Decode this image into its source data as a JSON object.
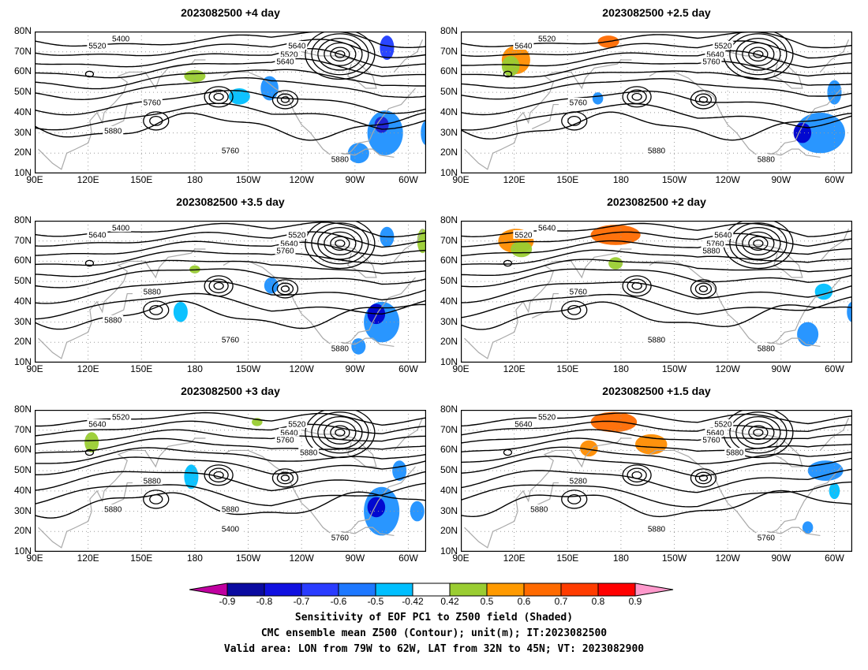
{
  "panels": [
    {
      "title": "2023082500 +4 day",
      "contour_labels": [
        "5400",
        "5520",
        "5640",
        "5520",
        "5640",
        "5760",
        "5760",
        "5880",
        "5880"
      ],
      "blobs": [
        {
          "lon": -72,
          "lat": 72,
          "rx": 4,
          "ry": 6,
          "color": "#1f3cff"
        },
        {
          "lon": -73,
          "lat": 30,
          "rx": 10,
          "ry": 11,
          "color": "#1e90ff"
        },
        {
          "lon": -75,
          "lat": 34,
          "rx": 4,
          "ry": 4,
          "color": "#2020d0"
        },
        {
          "lon": -88,
          "lat": 20,
          "rx": 6,
          "ry": 5,
          "color": "#1e90ff"
        },
        {
          "lon": -155,
          "lat": 48,
          "rx": 6,
          "ry": 4,
          "color": "#00bfff"
        },
        {
          "lon": -138,
          "lat": 52,
          "rx": 5,
          "ry": 6,
          "color": "#1e90ff"
        },
        {
          "lon": 180,
          "lat": 58,
          "rx": 6,
          "ry": 3,
          "color": "#9acd32"
        },
        {
          "lon": -50,
          "lat": 30,
          "rx": 3,
          "ry": 6,
          "color": "#1e90ff"
        }
      ]
    },
    {
      "title": "2023082500 +2.5 day",
      "contour_labels": [
        "5520",
        "5640",
        "5520",
        "5640",
        "5760",
        "5760",
        "5880",
        "5880"
      ],
      "blobs": [
        {
          "lon": 121,
          "lat": 66,
          "rx": 8,
          "ry": 7,
          "color": "#ff8c00"
        },
        {
          "lon": 118,
          "lat": 63,
          "rx": 5,
          "ry": 5,
          "color": "#9acd32"
        },
        {
          "lon": 173,
          "lat": 75,
          "rx": 6,
          "ry": 3,
          "color": "#ff6a00"
        },
        {
          "lon": -68,
          "lat": 30,
          "rx": 14,
          "ry": 10,
          "color": "#1e90ff"
        },
        {
          "lon": -78,
          "lat": 30,
          "rx": 5,
          "ry": 5,
          "color": "#0000cd"
        },
        {
          "lon": -60,
          "lat": 50,
          "rx": 4,
          "ry": 6,
          "color": "#1e90ff"
        },
        {
          "lon": 167,
          "lat": 47,
          "rx": 3,
          "ry": 3,
          "color": "#1e90ff"
        }
      ]
    },
    {
      "title": "2023082500 +3.5 day",
      "contour_labels": [
        "5400",
        "5640",
        "5520",
        "5640",
        "5760",
        "5880",
        "5760",
        "5880",
        "5880"
      ],
      "blobs": [
        {
          "lon": -75,
          "lat": 30,
          "rx": 10,
          "ry": 10,
          "color": "#1e90ff"
        },
        {
          "lon": -78,
          "lat": 34,
          "rx": 5,
          "ry": 5,
          "color": "#0000cd"
        },
        {
          "lon": -72,
          "lat": 72,
          "rx": 4,
          "ry": 5,
          "color": "#1e90ff"
        },
        {
          "lon": -52,
          "lat": 70,
          "rx": 3,
          "ry": 6,
          "color": "#9acd32"
        },
        {
          "lon": -137,
          "lat": 48,
          "rx": 4,
          "ry": 4,
          "color": "#1e90ff"
        },
        {
          "lon": 180,
          "lat": 56,
          "rx": 3,
          "ry": 2,
          "color": "#9acd32"
        },
        {
          "lon": 172,
          "lat": 35,
          "rx": 4,
          "ry": 5,
          "color": "#00bfff"
        },
        {
          "lon": -88,
          "lat": 18,
          "rx": 4,
          "ry": 4,
          "color": "#1e90ff"
        }
      ]
    },
    {
      "title": "2023082500 +2 day",
      "contour_labels": [
        "5640",
        "5520",
        "5640",
        "5760",
        "5880",
        "5760",
        "5880",
        "5880"
      ],
      "blobs": [
        {
          "lon": 121,
          "lat": 70,
          "rx": 10,
          "ry": 6,
          "color": "#ff8c00"
        },
        {
          "lon": 124,
          "lat": 66,
          "rx": 6,
          "ry": 4,
          "color": "#9acd32"
        },
        {
          "lon": 177,
          "lat": 73,
          "rx": 14,
          "ry": 5,
          "color": "#ff6a00"
        },
        {
          "lon": 177,
          "lat": 59,
          "rx": 4,
          "ry": 3,
          "color": "#9acd32"
        },
        {
          "lon": -75,
          "lat": 24,
          "rx": 6,
          "ry": 6,
          "color": "#1e90ff"
        },
        {
          "lon": -66,
          "lat": 45,
          "rx": 5,
          "ry": 4,
          "color": "#00bfff"
        },
        {
          "lon": -50,
          "lat": 35,
          "rx": 3,
          "ry": 5,
          "color": "#1e90ff"
        }
      ]
    },
    {
      "title": "2023082500 +3 day",
      "contour_labels": [
        "5520",
        "5640",
        "5520",
        "5640",
        "5760",
        "5880",
        "5400",
        "5760",
        "5880",
        "5880",
        "5880"
      ],
      "blobs": [
        {
          "lon": -75,
          "lat": 30,
          "rx": 10,
          "ry": 12,
          "color": "#1e90ff"
        },
        {
          "lon": -78,
          "lat": 32,
          "rx": 5,
          "ry": 5,
          "color": "#0000cd"
        },
        {
          "lon": -65,
          "lat": 50,
          "rx": 4,
          "ry": 5,
          "color": "#1e90ff"
        },
        {
          "lon": -55,
          "lat": 30,
          "rx": 4,
          "ry": 5,
          "color": "#1e90ff"
        },
        {
          "lon": 122,
          "lat": 64,
          "rx": 4,
          "ry": 5,
          "color": "#9acd32"
        },
        {
          "lon": 178,
          "lat": 47,
          "rx": 4,
          "ry": 6,
          "color": "#00bfff"
        },
        {
          "lon": -145,
          "lat": 74,
          "rx": 3,
          "ry": 2,
          "color": "#9acd32"
        }
      ]
    },
    {
      "title": "2023082500 +1.5 day",
      "contour_labels": [
        "5520",
        "5640",
        "5520",
        "5640",
        "5760",
        "5280",
        "5880",
        "5760",
        "5880",
        "5880"
      ],
      "blobs": [
        {
          "lon": 176,
          "lat": 74,
          "rx": 13,
          "ry": 5,
          "color": "#ff6a00"
        },
        {
          "lon": -163,
          "lat": 63,
          "rx": 9,
          "ry": 5,
          "color": "#ff8c00"
        },
        {
          "lon": 162,
          "lat": 61,
          "rx": 5,
          "ry": 4,
          "color": "#ff8c00"
        },
        {
          "lon": -65,
          "lat": 50,
          "rx": 10,
          "ry": 5,
          "color": "#1e90ff"
        },
        {
          "lon": -75,
          "lat": 22,
          "rx": 3,
          "ry": 3,
          "color": "#1e90ff"
        },
        {
          "lon": -60,
          "lat": 40,
          "rx": 3,
          "ry": 4,
          "color": "#00bfff"
        }
      ]
    }
  ],
  "lat_ticks": [
    "80N",
    "70N",
    "60N",
    "50N",
    "40N",
    "30N",
    "20N",
    "10N"
  ],
  "lon_ticks": [
    "90E",
    "120E",
    "150E",
    "180",
    "150W",
    "120W",
    "90W",
    "60W"
  ],
  "colorbar": {
    "labels": [
      "-0.9",
      "-0.8",
      "-0.7",
      "-0.6",
      "-0.5",
      "-0.42",
      "0.42",
      "0.5",
      "0.6",
      "0.7",
      "0.8",
      "0.9"
    ],
    "colors": [
      "#0a0aa0",
      "#1010e0",
      "#2a3cff",
      "#1e78ff",
      "#00bfff",
      "#ffffff",
      "#9acd32",
      "#ff9a00",
      "#ff6a00",
      "#ff3c00",
      "#ff0000"
    ],
    "low_end_color": "#c000a0",
    "high_end_color": "#ff99cc"
  },
  "caption": {
    "line1": "Sensitivity of EOF PC1 to Z500 field (Shaded)",
    "line2": "CMC ensemble mean Z500 (Contour); unit(m); IT:2023082500",
    "line3": "Valid area: LON from 79W to 62W, LAT from 32N to 45N; VT: 2023082900"
  }
}
